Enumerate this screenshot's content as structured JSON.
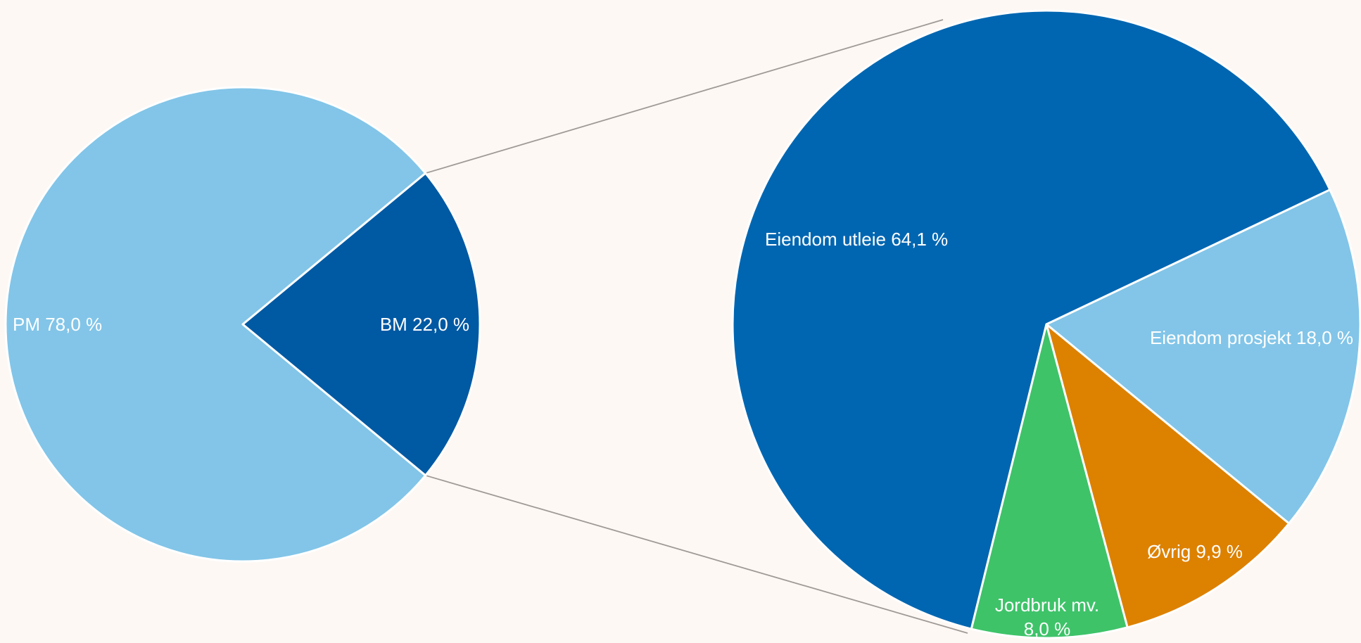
{
  "colors": {
    "background": "#fdf8f4",
    "light_blue": "#82c5e8",
    "dark_blue": "#0059a3",
    "mid_blue": "#0166b1",
    "green": "#3ec369",
    "orange": "#dd8100",
    "connector": "#a09a96"
  },
  "chart_data": [
    {
      "type": "pie",
      "title": "",
      "slices": [
        {
          "label": "PM",
          "value_label": "78,0 %",
          "value": 78.0,
          "color": "#82c5e8"
        },
        {
          "label": "BM",
          "value_label": "22,0 %",
          "value": 22.0,
          "color": "#0059a3",
          "exploded_into_detail": true
        }
      ]
    },
    {
      "type": "pie",
      "title": "",
      "breakdown_of": "BM",
      "slices": [
        {
          "label": "Eiendom utleie",
          "value_label": "64,1 %",
          "value": 64.1,
          "color": "#0166b1"
        },
        {
          "label": "Eiendom prosjekt",
          "value_label": "18,0 %",
          "value": 18.0,
          "color": "#82c5e8"
        },
        {
          "label": "Øvrig",
          "value_label": "9,9 %",
          "value": 9.9,
          "color": "#dd8100"
        },
        {
          "label": "Jordbruk mv.",
          "value_label": "8,0 %",
          "value": 8.0,
          "color": "#3ec369"
        }
      ]
    }
  ]
}
